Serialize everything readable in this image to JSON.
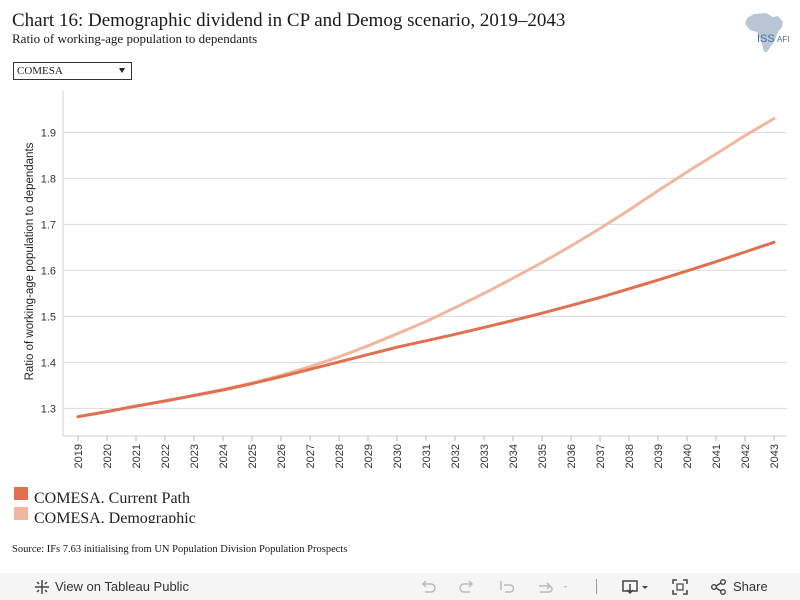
{
  "header": {
    "title": "Chart 16: Demographic dividend in CP and Demog scenario, 2019–2043",
    "subtitle": "Ratio of working-age population to dependants",
    "logo_text": "ISS",
    "logo_text_small": "AFI"
  },
  "filter": {
    "selected": "COMESA"
  },
  "chart_data": {
    "type": "line",
    "title": "Chart 16: Demographic dividend in CP and Demog scenario, 2019–2043",
    "ylabel": "Ratio of working-age population to dependants",
    "xlabel": "",
    "ylim": [
      1.24,
      1.99
    ],
    "yticks": [
      1.3,
      1.4,
      1.5,
      1.6,
      1.7,
      1.8,
      1.9
    ],
    "grid": true,
    "legend_position": "bottom-left",
    "x": [
      "2019",
      "2020",
      "2021",
      "2022",
      "2023",
      "2024",
      "2025",
      "2026",
      "2027",
      "2028",
      "2029",
      "2030",
      "2031",
      "2032",
      "2033",
      "2034",
      "2035",
      "2036",
      "2037",
      "2038",
      "2039",
      "2040",
      "2041",
      "2042",
      "2043"
    ],
    "series": [
      {
        "name": "COMESA. Current Path",
        "color": "#e07050",
        "values": [
          1.282,
          1.293,
          1.305,
          1.316,
          1.328,
          1.34,
          1.354,
          1.369,
          1.385,
          1.401,
          1.417,
          1.433,
          1.447,
          1.461,
          1.476,
          1.491,
          1.507,
          1.524,
          1.541,
          1.56,
          1.579,
          1.599,
          1.619,
          1.64,
          1.661
        ]
      },
      {
        "name": "COMESA. Demographic",
        "color": "#f1b79e",
        "values": [
          1.282,
          1.293,
          1.305,
          1.316,
          1.328,
          1.341,
          1.355,
          1.372,
          1.391,
          1.412,
          1.436,
          1.462,
          1.489,
          1.519,
          1.55,
          1.583,
          1.617,
          1.653,
          1.691,
          1.731,
          1.773,
          1.814,
          1.853,
          1.893,
          1.93
        ]
      }
    ]
  },
  "legend": {
    "items": [
      {
        "label": "COMESA. Current Path",
        "color": "#e07050"
      },
      {
        "label": "COMESA. Demographic",
        "color": "#f1b79e"
      }
    ]
  },
  "source": "Source: IFs 7.63 initialising from UN Population Division Population Prospects",
  "toolbar": {
    "view_label": "View on Tableau Public",
    "share_label": "Share"
  }
}
